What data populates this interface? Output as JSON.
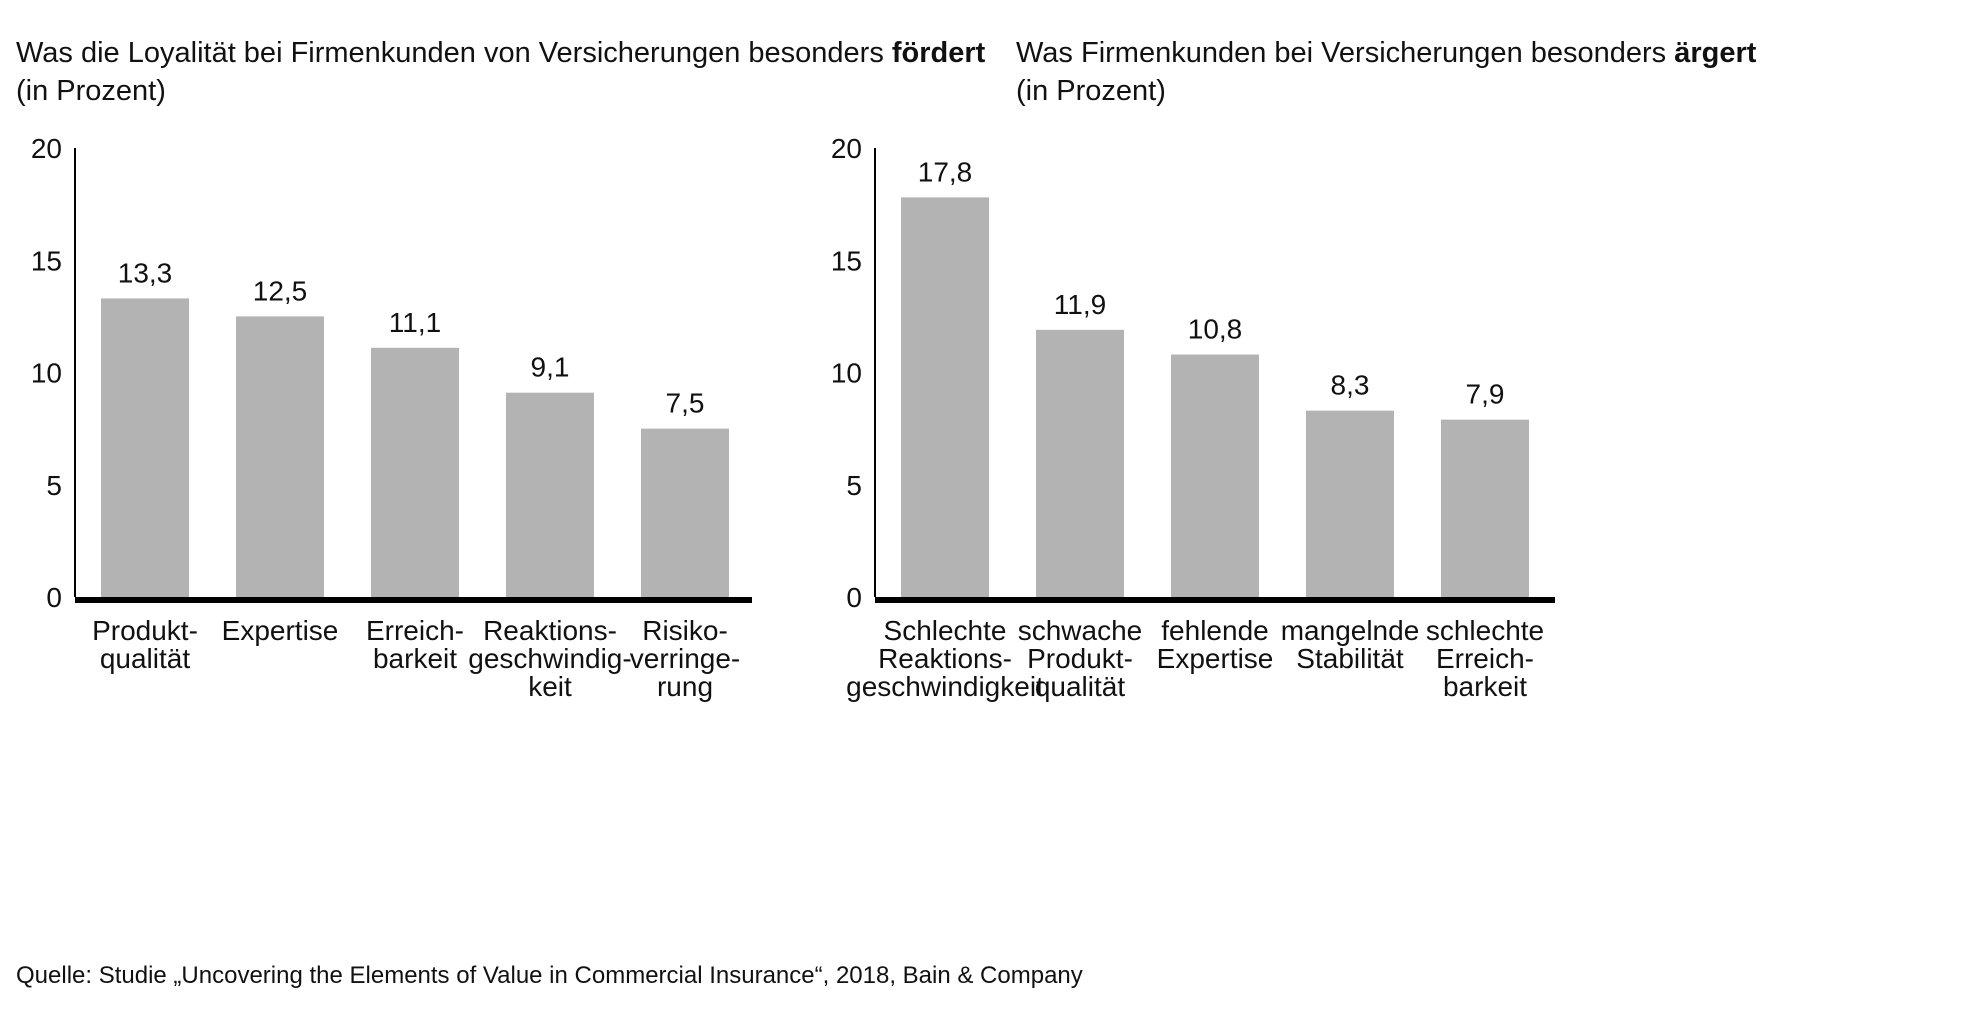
{
  "colors": {
    "bar": "#b3b3b3",
    "axis": "#000000",
    "text": "#111111",
    "background": "#ffffff"
  },
  "source": "Quelle: Studie „Uncovering the Elements of Value in Commercial Insurance“, 2018, Bain & Company",
  "chart_data": [
    {
      "type": "bar",
      "title_prefix": "Was die Loyalität bei Firmenkunden von Versicherungen besonders ",
      "title_emphasis": "fördert",
      "subtitle": "(in Prozent)",
      "categories": [
        [
          "Produkt-",
          "qualität"
        ],
        [
          "Expertise"
        ],
        [
          "Erreich-",
          "barkeit"
        ],
        [
          "Reaktions-",
          "geschwindig-",
          "keit"
        ],
        [
          "Risiko-",
          "verringe-",
          "rung"
        ]
      ],
      "values": [
        13.3,
        12.5,
        11.1,
        9.1,
        7.5
      ],
      "value_labels": [
        "13,3",
        "12,5",
        "11,1",
        "9,1",
        "7,5"
      ],
      "ylim": [
        0,
        20
      ],
      "yticks": [
        "0",
        "5",
        "10",
        "15",
        "20"
      ],
      "ytick_values": [
        0,
        5,
        10,
        15,
        20
      ],
      "grid": false,
      "legend": "none"
    },
    {
      "type": "bar",
      "title_prefix": "Was Firmenkunden bei Versicherungen besonders ",
      "title_emphasis": "ärgert",
      "subtitle": "(in Prozent)",
      "categories": [
        [
          "Schlechte",
          "Reaktions-",
          "geschwindigkeit"
        ],
        [
          "schwache",
          "Produkt-",
          "qualität"
        ],
        [
          "fehlende",
          "Expertise"
        ],
        [
          "mangelnde",
          "Stabilität"
        ],
        [
          "schlechte",
          "Erreich-",
          "barkeit"
        ]
      ],
      "values": [
        17.8,
        11.9,
        10.8,
        8.3,
        7.9
      ],
      "value_labels": [
        "17,8",
        "11,9",
        "10,8",
        "8,3",
        "7,9"
      ],
      "ylim": [
        0,
        20
      ],
      "yticks": [
        "0",
        "5",
        "10",
        "15",
        "20"
      ],
      "ytick_values": [
        0,
        5,
        10,
        15,
        20
      ],
      "grid": false,
      "legend": "none"
    }
  ]
}
